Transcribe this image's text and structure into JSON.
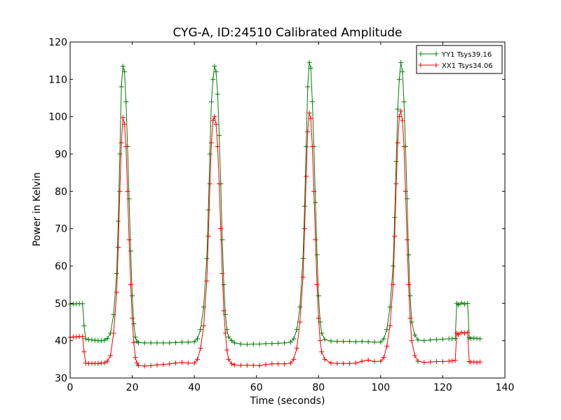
{
  "chart_data": {
    "type": "line",
    "title": "CYG-A, ID:24510 Calibrated Amplitude",
    "xlabel": "Time (seconds)",
    "ylabel": "Power in Kelvin",
    "xlim": [
      0,
      140
    ],
    "ylim": [
      30,
      120
    ],
    "xticks": [
      0,
      20,
      40,
      60,
      80,
      100,
      120,
      140
    ],
    "yticks": [
      30,
      40,
      50,
      60,
      70,
      80,
      90,
      100,
      110,
      120
    ],
    "grid": false,
    "legend_position": "top-right",
    "marker": "+",
    "series": [
      {
        "name": "YY1 Tsys39.16",
        "color": "#008000",
        "points": [
          [
            0,
            49.8
          ],
          [
            1,
            49.8
          ],
          [
            2,
            49.9
          ],
          [
            3,
            49.9
          ],
          [
            4,
            49.9
          ],
          [
            4.5,
            44
          ],
          [
            5,
            40.5
          ],
          [
            6,
            40.3
          ],
          [
            7,
            40.2
          ],
          [
            8,
            40.1
          ],
          [
            9,
            40.0
          ],
          [
            10,
            40.0
          ],
          [
            11,
            40.1
          ],
          [
            12,
            40.6
          ],
          [
            13,
            42
          ],
          [
            14,
            47
          ],
          [
            15,
            58
          ],
          [
            15.5,
            72
          ],
          [
            16,
            90
          ],
          [
            16.5,
            108
          ],
          [
            17,
            113.5
          ],
          [
            17.5,
            112
          ],
          [
            18,
            104
          ],
          [
            18.5,
            92
          ],
          [
            19,
            78
          ],
          [
            19.5,
            64
          ],
          [
            20,
            52
          ],
          [
            20.5,
            44.5
          ],
          [
            21,
            41
          ],
          [
            21.5,
            39.8
          ],
          [
            22,
            39.5
          ],
          [
            24,
            39.4
          ],
          [
            26,
            39.4
          ],
          [
            28,
            39.4
          ],
          [
            30,
            39.4
          ],
          [
            32,
            39.4
          ],
          [
            34,
            39.5
          ],
          [
            36,
            39.6
          ],
          [
            38,
            39.6
          ],
          [
            40,
            39.7
          ],
          [
            41,
            40.5
          ],
          [
            42,
            43
          ],
          [
            43,
            49
          ],
          [
            44,
            62
          ],
          [
            44.5,
            75
          ],
          [
            45,
            90
          ],
          [
            45.5,
            104
          ],
          [
            46,
            110
          ],
          [
            46.5,
            113.5
          ],
          [
            47,
            112
          ],
          [
            47.5,
            106
          ],
          [
            48,
            95
          ],
          [
            48.5,
            82
          ],
          [
            49,
            67
          ],
          [
            49.5,
            55
          ],
          [
            50,
            47
          ],
          [
            50.5,
            43
          ],
          [
            51,
            41
          ],
          [
            52,
            40
          ],
          [
            53,
            39.4
          ],
          [
            55,
            39.1
          ],
          [
            57,
            39.0
          ],
          [
            59,
            39.1
          ],
          [
            61,
            39.1
          ],
          [
            63,
            39.2
          ],
          [
            65,
            39.2
          ],
          [
            67,
            39.3
          ],
          [
            69,
            39.4
          ],
          [
            71,
            39.6
          ],
          [
            72,
            40.5
          ],
          [
            73,
            43
          ],
          [
            74,
            49
          ],
          [
            75,
            62
          ],
          [
            75.5,
            76
          ],
          [
            76,
            92
          ],
          [
            76.5,
            108
          ],
          [
            77,
            114.5
          ],
          [
            77.5,
            113
          ],
          [
            78,
            104
          ],
          [
            78.5,
            92
          ],
          [
            79,
            77
          ],
          [
            79.5,
            63
          ],
          [
            80,
            52
          ],
          [
            80.5,
            45
          ],
          [
            81,
            42
          ],
          [
            82,
            40.3
          ],
          [
            84,
            39.9
          ],
          [
            86,
            39.8
          ],
          [
            88,
            39.8
          ],
          [
            90,
            39.8
          ],
          [
            92,
            39.7
          ],
          [
            94,
            39.8
          ],
          [
            96,
            39.7
          ],
          [
            98,
            39.6
          ],
          [
            100,
            39.6
          ],
          [
            101,
            40.5
          ],
          [
            102,
            43
          ],
          [
            103,
            49
          ],
          [
            104,
            60
          ],
          [
            104.5,
            73
          ],
          [
            105,
            88
          ],
          [
            105.5,
            102
          ],
          [
            106,
            110
          ],
          [
            106.5,
            114.5
          ],
          [
            107,
            112
          ],
          [
            107.5,
            104
          ],
          [
            108,
            92
          ],
          [
            108.5,
            78
          ],
          [
            109,
            63
          ],
          [
            109.5,
            52
          ],
          [
            110,
            45
          ],
          [
            111,
            41.5
          ],
          [
            112,
            40.2
          ],
          [
            114,
            40.0
          ],
          [
            116,
            40.2
          ],
          [
            118,
            40.3
          ],
          [
            120,
            40.4
          ],
          [
            122,
            40.5
          ],
          [
            123,
            40.5
          ],
          [
            124,
            40.6
          ],
          [
            124.5,
            50.0
          ],
          [
            125,
            49.6
          ],
          [
            126,
            50.1
          ],
          [
            127,
            49.8
          ],
          [
            128,
            50.0
          ],
          [
            128.5,
            40.8
          ],
          [
            129,
            40.6
          ],
          [
            130,
            40.7
          ],
          [
            131,
            40.6
          ],
          [
            132,
            40.5
          ]
        ]
      },
      {
        "name": "XX1 Tsys34.06",
        "color": "#ff0000",
        "points": [
          [
            0,
            40.9
          ],
          [
            1,
            41.0
          ],
          [
            2,
            41.0
          ],
          [
            3,
            41.1
          ],
          [
            4,
            41.1
          ],
          [
            4.5,
            37
          ],
          [
            5,
            34.0
          ],
          [
            6,
            33.9
          ],
          [
            7,
            33.9
          ],
          [
            8,
            33.9
          ],
          [
            9,
            33.9
          ],
          [
            10,
            34.0
          ],
          [
            11,
            34.0
          ],
          [
            12,
            34.5
          ],
          [
            13,
            36
          ],
          [
            14,
            42
          ],
          [
            15,
            53
          ],
          [
            15.5,
            65
          ],
          [
            16,
            80
          ],
          [
            16.5,
            93
          ],
          [
            17,
            99.8
          ],
          [
            17.5,
            98
          ],
          [
            18,
            92
          ],
          [
            18.5,
            80
          ],
          [
            19,
            67
          ],
          [
            19.5,
            55
          ],
          [
            20,
            46
          ],
          [
            20.5,
            39.5
          ],
          [
            21,
            35.5
          ],
          [
            21.5,
            34
          ],
          [
            22,
            33.3
          ],
          [
            24,
            33.2
          ],
          [
            26,
            33.3
          ],
          [
            28,
            33.5
          ],
          [
            30,
            33.6
          ],
          [
            32,
            33.8
          ],
          [
            34,
            34.0
          ],
          [
            36,
            34.2
          ],
          [
            38,
            34.0
          ],
          [
            40,
            34.0
          ],
          [
            41,
            35
          ],
          [
            42,
            38
          ],
          [
            43,
            44
          ],
          [
            44,
            56
          ],
          [
            44.5,
            68
          ],
          [
            45,
            82
          ],
          [
            45.5,
            93
          ],
          [
            46,
            99
          ],
          [
            46.5,
            100
          ],
          [
            47,
            98
          ],
          [
            47.5,
            92
          ],
          [
            48,
            82
          ],
          [
            48.5,
            70
          ],
          [
            49,
            58
          ],
          [
            49.5,
            48
          ],
          [
            50,
            42
          ],
          [
            50.5,
            37.5
          ],
          [
            51,
            35
          ],
          [
            52,
            33.8
          ],
          [
            53,
            33.5
          ],
          [
            55,
            33.4
          ],
          [
            57,
            33.4
          ],
          [
            59,
            33.4
          ],
          [
            61,
            33.3
          ],
          [
            63,
            33.6
          ],
          [
            65,
            33.8
          ],
          [
            67,
            33.8
          ],
          [
            69,
            33.8
          ],
          [
            71,
            34.0
          ],
          [
            72,
            35
          ],
          [
            73,
            38
          ],
          [
            74,
            45
          ],
          [
            75,
            57
          ],
          [
            75.5,
            70
          ],
          [
            76,
            84
          ],
          [
            76.5,
            96
          ],
          [
            77,
            101
          ],
          [
            77.5,
            99.5
          ],
          [
            78,
            92
          ],
          [
            78.5,
            80
          ],
          [
            79,
            67
          ],
          [
            79.5,
            55
          ],
          [
            80,
            46
          ],
          [
            80.5,
            40
          ],
          [
            81,
            37
          ],
          [
            82,
            35
          ],
          [
            84,
            34.0
          ],
          [
            86,
            33.9
          ],
          [
            88,
            33.9
          ],
          [
            90,
            33.9
          ],
          [
            92,
            34.0
          ],
          [
            94,
            34.5
          ],
          [
            96,
            34.8
          ],
          [
            98,
            34.4
          ],
          [
            100,
            34.5
          ],
          [
            101,
            35.5
          ],
          [
            102,
            38.5
          ],
          [
            103,
            44
          ],
          [
            104,
            55
          ],
          [
            104.5,
            68
          ],
          [
            105,
            82
          ],
          [
            105.5,
            93
          ],
          [
            106,
            100
          ],
          [
            106.5,
            101.5
          ],
          [
            107,
            99
          ],
          [
            107.5,
            92
          ],
          [
            108,
            80
          ],
          [
            108.5,
            67
          ],
          [
            109,
            55
          ],
          [
            109.5,
            46
          ],
          [
            110,
            40
          ],
          [
            111,
            36
          ],
          [
            112,
            34.5
          ],
          [
            114,
            34.2
          ],
          [
            116,
            34.3
          ],
          [
            118,
            34.4
          ],
          [
            120,
            34.4
          ],
          [
            122,
            34.5
          ],
          [
            123,
            34.6
          ],
          [
            124,
            34.7
          ],
          [
            124.5,
            42.0
          ],
          [
            125,
            41.6
          ],
          [
            126,
            42.2
          ],
          [
            127,
            42.0
          ],
          [
            128,
            42.2
          ],
          [
            128.5,
            34.4
          ],
          [
            129,
            34.3
          ],
          [
            130,
            34.3
          ],
          [
            131,
            34.2
          ],
          [
            132,
            34.3
          ]
        ]
      }
    ]
  }
}
